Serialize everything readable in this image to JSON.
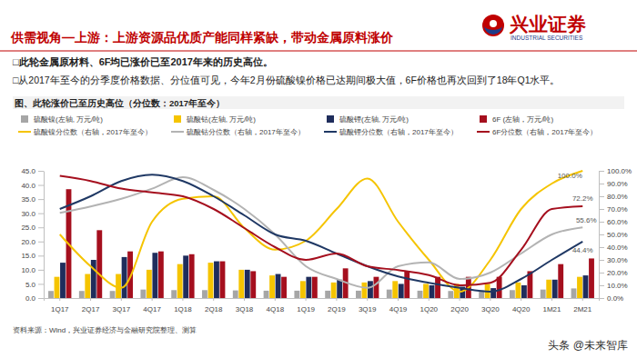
{
  "slide": {
    "header": "供需视角—上游：上游资源品优质产能同样紧缺，带动金属原料涨价",
    "logo": {
      "name": "兴业证券",
      "english": "INDUSTRIAL SECURITIES"
    },
    "bullets": [
      "□此轮金属原材料、6F均已涨价已至2017年来的历史高位。",
      "□从2017年至今的分季度价格数据、分位值可见，今年2月份硫酸镍价格已达期间极大值，6F价格也再次回到了18年Q1水平。"
    ],
    "source": "资料来源：Wind，兴业证券经济与金融研究院整理、测算",
    "watermark": "头条 @未来智库"
  },
  "chart_data": {
    "type": "bar",
    "title": "图、此轮涨价已至历史高位（分位数：2017年至今）",
    "categories": [
      "1Q17",
      "2Q17",
      "3Q17",
      "4Q17",
      "1Q18",
      "2Q18",
      "3Q18",
      "4Q18",
      "1Q19",
      "2Q19",
      "3Q19",
      "4Q19",
      "1Q20",
      "2Q20",
      "3Q20",
      "4Q20",
      "1M21",
      "2M21"
    ],
    "ylim": [
      0,
      45
    ],
    "yticks": [
      {
        "value": 0,
        "label": "0.0"
      },
      {
        "value": 5,
        "label": "5.0"
      },
      {
        "value": 10,
        "label": "10.0"
      },
      {
        "value": 15,
        "label": "15.0"
      },
      {
        "value": 20,
        "label": "20.0"
      },
      {
        "value": 25,
        "label": "25.0"
      },
      {
        "value": 30,
        "label": "30.0"
      },
      {
        "value": 35,
        "label": "35.0"
      },
      {
        "value": 40,
        "label": "40.0"
      },
      {
        "value": 45,
        "label": "45.0"
      }
    ],
    "y2lim": [
      0,
      100
    ],
    "y2ticks": [
      {
        "value": 0,
        "label": "0.0%"
      },
      {
        "value": 10,
        "label": "10.0%"
      },
      {
        "value": 20,
        "label": "20.0%"
      },
      {
        "value": 30,
        "label": "30.0%"
      },
      {
        "value": 40,
        "label": "40.0%"
      },
      {
        "value": 50,
        "label": "50.0%"
      },
      {
        "value": 60,
        "label": "60.0%"
      },
      {
        "value": 70,
        "label": "70.0%"
      },
      {
        "value": 80,
        "label": "80.0%"
      },
      {
        "value": 90,
        "label": "90.0%"
      },
      {
        "value": 100,
        "label": "100.0%"
      }
    ],
    "legend": "top",
    "series": [
      {
        "name": "硫酸镍(左轴, 万元/吨)",
        "type": "bar",
        "color": "#a6a6a6",
        "values": [
          2.5,
          2.5,
          2.5,
          3,
          2.8,
          2.8,
          2.7,
          2.6,
          2.6,
          2.6,
          2.6,
          3,
          2.6,
          2.5,
          2.7,
          2.8,
          3,
          3.4
        ]
      },
      {
        "name": "硫酸钴(左轴, 万元/吨)",
        "type": "bar",
        "color": "#f5c400",
        "values": [
          7.5,
          8.5,
          8.5,
          10,
          12,
          12.5,
          10,
          8,
          6,
          5.5,
          5.5,
          6,
          5,
          5,
          5,
          5.5,
          6.5,
          7.5
        ]
      },
      {
        "name": "硫酸锂(左轴, 万元/吨)",
        "type": "bar",
        "color": "#1f2d5c",
        "values": [
          12.5,
          13.5,
          14.5,
          16,
          15,
          13,
          10,
          8.5,
          7.5,
          6.5,
          6,
          5,
          4.5,
          4,
          3.5,
          4.5,
          6.5,
          8
        ]
      },
      {
        "name": "6F (左轴，万元/吨)",
        "type": "bar",
        "color": "#a50f1e",
        "values": [
          38.5,
          24,
          16.5,
          16.5,
          15.5,
          13,
          9.5,
          7.5,
          7.5,
          10.5,
          7.5,
          9.5,
          7.5,
          7.5,
          7.5,
          9.5,
          12,
          14
        ]
      },
      {
        "name": "硫酸镍分位数（右轴，2017年至今）",
        "type": "line",
        "axis": "y2",
        "color": "#f5c400",
        "values": [
          50,
          25,
          8,
          60,
          78,
          80,
          55,
          38,
          45,
          70,
          94,
          60,
          30,
          5,
          30,
          70,
          90,
          100
        ]
      },
      {
        "name": "硫酸钴分位数（右轴，2017年至今）",
        "type": "line",
        "axis": "y2",
        "color": "#b3b3b3",
        "values": [
          67,
          72,
          78,
          86,
          95,
          85,
          70,
          50,
          25,
          15,
          8,
          25,
          28,
          15,
          20,
          35,
          50,
          55.6
        ]
      },
      {
        "name": "硫酸锂分位数（右轴，2017年至今）",
        "type": "line",
        "axis": "y2",
        "color": "#1f3864",
        "values": [
          70,
          80,
          92,
          97,
          92,
          80,
          65,
          50,
          45,
          35,
          25,
          17,
          12,
          8,
          5,
          15,
          30,
          44.4
        ]
      },
      {
        "name": "6F分位数（右轴，2017年至今）",
        "type": "line",
        "axis": "y2",
        "color": "#a50f1e",
        "values": [
          96,
          92,
          86,
          83,
          80,
          70,
          55,
          40,
          30,
          35,
          25,
          22,
          18,
          10,
          12,
          38,
          70,
          72.2
        ]
      }
    ],
    "annotations": [
      {
        "text": "100.0%",
        "x": "2M21",
        "y": 100
      },
      {
        "text": "72.2%",
        "x": "2M21",
        "y": 72.2
      },
      {
        "text": "55.6%",
        "x": "2M21",
        "y": 55.6
      },
      {
        "text": "44.4%",
        "x": "2M21",
        "y": 44.4
      }
    ]
  }
}
